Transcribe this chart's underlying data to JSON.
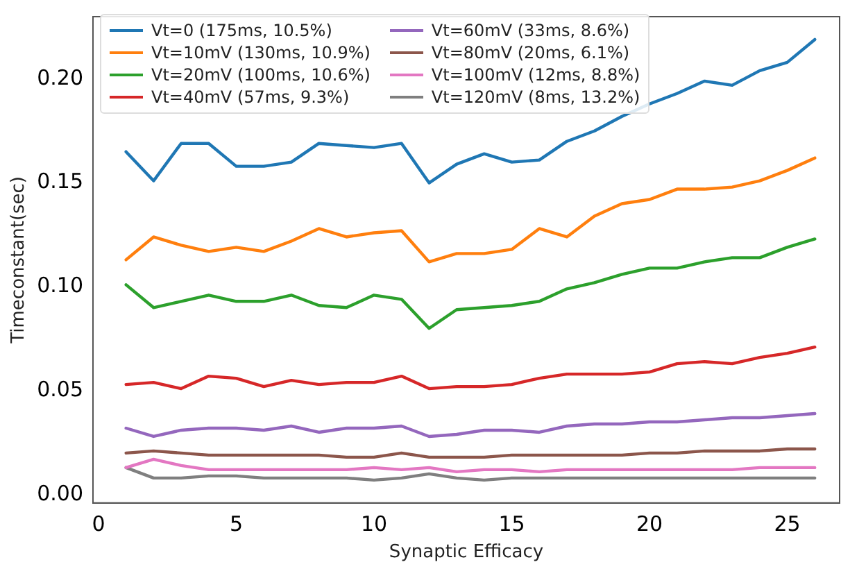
{
  "chart_data": {
    "type": "line",
    "xlabel": "Synaptic Efficacy",
    "ylabel": "Timeconstant(sec)",
    "x": [
      1,
      2,
      3,
      4,
      5,
      6,
      7,
      8,
      9,
      10,
      11,
      12,
      13,
      14,
      15,
      16,
      17,
      18,
      19,
      20,
      21,
      22,
      23,
      24,
      25,
      26
    ],
    "xlim": [
      -0.2,
      26.9
    ],
    "xticks": [
      0,
      5,
      10,
      15,
      20,
      25
    ],
    "ylim": [
      -0.004,
      0.23
    ],
    "yticks": [
      {
        "value": 0,
        "label": "0.00"
      },
      {
        "value": 0.05,
        "label": "0.05"
      },
      {
        "value": 0.1,
        "label": "0.10"
      },
      {
        "value": 0.15,
        "label": "0.15"
      },
      {
        "value": 0.2,
        "label": "0.20"
      }
    ],
    "grid": false,
    "legend": "top left",
    "marker": "none",
    "line_style": "solid",
    "series": [
      {
        "name": "Vt=0 (175ms, 10.5%)",
        "color": "#1f77b4",
        "values": [
          0.165,
          0.151,
          0.169,
          0.169,
          0.158,
          0.158,
          0.16,
          0.169,
          0.168,
          0.167,
          0.169,
          0.15,
          0.159,
          0.164,
          0.16,
          0.161,
          0.17,
          0.175,
          0.182,
          0.188,
          0.193,
          0.199,
          0.197,
          0.204,
          0.208,
          0.219
        ]
      },
      {
        "name": "Vt=10mV (130ms, 10.9%)",
        "color": "#ff7f0e",
        "values": [
          0.113,
          0.124,
          0.12,
          0.117,
          0.119,
          0.117,
          0.122,
          0.128,
          0.124,
          0.126,
          0.127,
          0.112,
          0.116,
          0.116,
          0.118,
          0.128,
          0.124,
          0.134,
          0.14,
          0.142,
          0.147,
          0.147,
          0.148,
          0.151,
          0.156,
          0.162
        ]
      },
      {
        "name": "Vt=20mV (100ms, 10.6%)",
        "color": "#2ca02c",
        "values": [
          0.101,
          0.09,
          0.093,
          0.096,
          0.093,
          0.093,
          0.096,
          0.091,
          0.09,
          0.096,
          0.094,
          0.08,
          0.089,
          0.09,
          0.091,
          0.093,
          0.099,
          0.102,
          0.106,
          0.109,
          0.109,
          0.112,
          0.114,
          0.114,
          0.119,
          0.123
        ]
      },
      {
        "name": "Vt=40mV (57ms, 9.3%)",
        "color": "#d62728",
        "values": [
          0.053,
          0.054,
          0.051,
          0.057,
          0.056,
          0.052,
          0.055,
          0.053,
          0.054,
          0.054,
          0.057,
          0.051,
          0.052,
          0.052,
          0.053,
          0.056,
          0.058,
          0.058,
          0.058,
          0.059,
          0.063,
          0.064,
          0.063,
          0.066,
          0.068,
          0.071
        ]
      },
      {
        "name": "Vt=60mV (33ms, 8.6%)",
        "color": "#9467bd",
        "values": [
          0.032,
          0.028,
          0.031,
          0.032,
          0.032,
          0.031,
          0.033,
          0.03,
          0.032,
          0.032,
          0.033,
          0.028,
          0.029,
          0.031,
          0.031,
          0.03,
          0.033,
          0.034,
          0.034,
          0.035,
          0.035,
          0.036,
          0.037,
          0.037,
          0.038,
          0.039
        ]
      },
      {
        "name": "Vt=80mV (20ms, 6.1%)",
        "color": "#8c564b",
        "values": [
          0.02,
          0.021,
          0.02,
          0.019,
          0.019,
          0.019,
          0.019,
          0.019,
          0.018,
          0.018,
          0.02,
          0.018,
          0.018,
          0.018,
          0.019,
          0.019,
          0.019,
          0.019,
          0.019,
          0.02,
          0.02,
          0.021,
          0.021,
          0.021,
          0.022,
          0.022
        ]
      },
      {
        "name": "Vt=100mV (12ms, 8.8%)",
        "color": "#e377c2",
        "values": [
          0.013,
          0.017,
          0.014,
          0.012,
          0.012,
          0.012,
          0.012,
          0.012,
          0.012,
          0.013,
          0.012,
          0.013,
          0.011,
          0.012,
          0.012,
          0.011,
          0.012,
          0.012,
          0.012,
          0.012,
          0.012,
          0.012,
          0.012,
          0.013,
          0.013,
          0.013
        ]
      },
      {
        "name": "Vt=120mV (8ms, 13.2%)",
        "color": "#7f7f7f",
        "values": [
          0.013,
          0.008,
          0.008,
          0.009,
          0.009,
          0.008,
          0.008,
          0.008,
          0.008,
          0.007,
          0.008,
          0.01,
          0.008,
          0.007,
          0.008,
          0.008,
          0.008,
          0.008,
          0.008,
          0.008,
          0.008,
          0.008,
          0.008,
          0.008,
          0.008,
          0.008
        ]
      }
    ]
  }
}
